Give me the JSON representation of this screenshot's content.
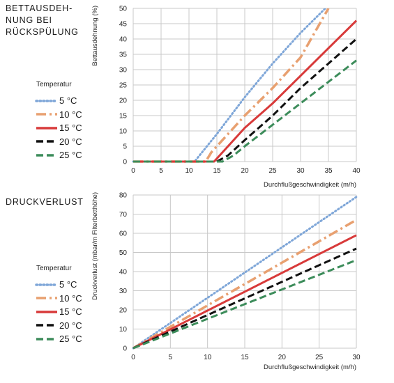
{
  "colors": {
    "t5": "#7ea6d8",
    "t10": "#e8a070",
    "t15": "#d83a3a",
    "t20": "#111111",
    "t25": "#3c8c5a",
    "grid": "#c8c8c8"
  },
  "chart_data": [
    {
      "type": "line",
      "title": "BETTAUSDEHNUNG BEI RÜCKSPÜLUNG",
      "title_lines": [
        "BETTAUSDEH-",
        "NUNG BEI",
        "RÜCKSPÜLUNG"
      ],
      "xlabel": "Durchflußgeschwindigkeit (m/h)",
      "ylabel": "Bettausdehnung (%)",
      "xlim": [
        0,
        40
      ],
      "ylim": [
        0,
        50
      ],
      "xticks": [
        0,
        5,
        10,
        15,
        20,
        25,
        30,
        35,
        40
      ],
      "yticks": [
        0,
        5,
        10,
        15,
        20,
        25,
        30,
        35,
        40,
        45,
        50
      ],
      "grid": true,
      "legend_title": "Temperatur",
      "series": [
        {
          "name": "5 °C",
          "style": "dotted",
          "color_key": "t5",
          "x": [
            0,
            11,
            15,
            20,
            25,
            30,
            35
          ],
          "y": [
            0,
            0,
            9,
            21,
            32,
            42,
            51
          ]
        },
        {
          "name": "10 °C",
          "style": "dashdot",
          "color_key": "t10",
          "x": [
            0,
            13,
            14,
            20,
            25,
            30,
            35
          ],
          "y": [
            0,
            0,
            3,
            15,
            24,
            34,
            50
          ]
        },
        {
          "name": "15 °C",
          "style": "solid",
          "color_key": "t15",
          "x": [
            0,
            14.5,
            15,
            20,
            25,
            30,
            35,
            40
          ],
          "y": [
            0,
            0,
            1,
            11,
            19,
            28,
            37,
            46
          ]
        },
        {
          "name": "20 °C",
          "style": "dashed",
          "color_key": "t20",
          "x": [
            0,
            15,
            17,
            20,
            25,
            30,
            35,
            40
          ],
          "y": [
            0,
            0,
            2,
            7,
            15,
            24,
            32,
            40
          ]
        },
        {
          "name": "25 °C",
          "style": "dashed",
          "color_key": "t25",
          "x": [
            0,
            16,
            18,
            20,
            25,
            30,
            35,
            40
          ],
          "y": [
            0,
            0,
            2,
            5,
            12,
            19,
            26,
            33
          ]
        }
      ]
    },
    {
      "type": "line",
      "title": "DRUCKVERLUST",
      "title_lines": [
        "DRUCKVERLUST"
      ],
      "xlabel": "Durchflußgeschwindigkeit (m/h)",
      "ylabel": "Druckverlust (mbar/m Filterbetthöhe)",
      "xlim": [
        0,
        30
      ],
      "ylim": [
        0,
        80
      ],
      "xticks": [
        0,
        5,
        10,
        15,
        20,
        25,
        30
      ],
      "yticks": [
        0,
        10,
        20,
        30,
        40,
        50,
        60,
        70,
        80
      ],
      "grid": true,
      "legend_title": "Temperatur",
      "series": [
        {
          "name": "5 °C",
          "style": "dotted",
          "color_key": "t5",
          "x": [
            0,
            30
          ],
          "y": [
            0,
            79
          ]
        },
        {
          "name": "10 °C",
          "style": "dashdot",
          "color_key": "t10",
          "x": [
            0,
            30
          ],
          "y": [
            0,
            67
          ]
        },
        {
          "name": "15 °C",
          "style": "solid",
          "color_key": "t15",
          "x": [
            0,
            30
          ],
          "y": [
            0,
            59
          ]
        },
        {
          "name": "20 °C",
          "style": "dashed",
          "color_key": "t20",
          "x": [
            0,
            30
          ],
          "y": [
            0,
            52
          ]
        },
        {
          "name": "25 °C",
          "style": "dashed",
          "color_key": "t25",
          "x": [
            0,
            30
          ],
          "y": [
            0,
            46
          ]
        }
      ]
    }
  ]
}
